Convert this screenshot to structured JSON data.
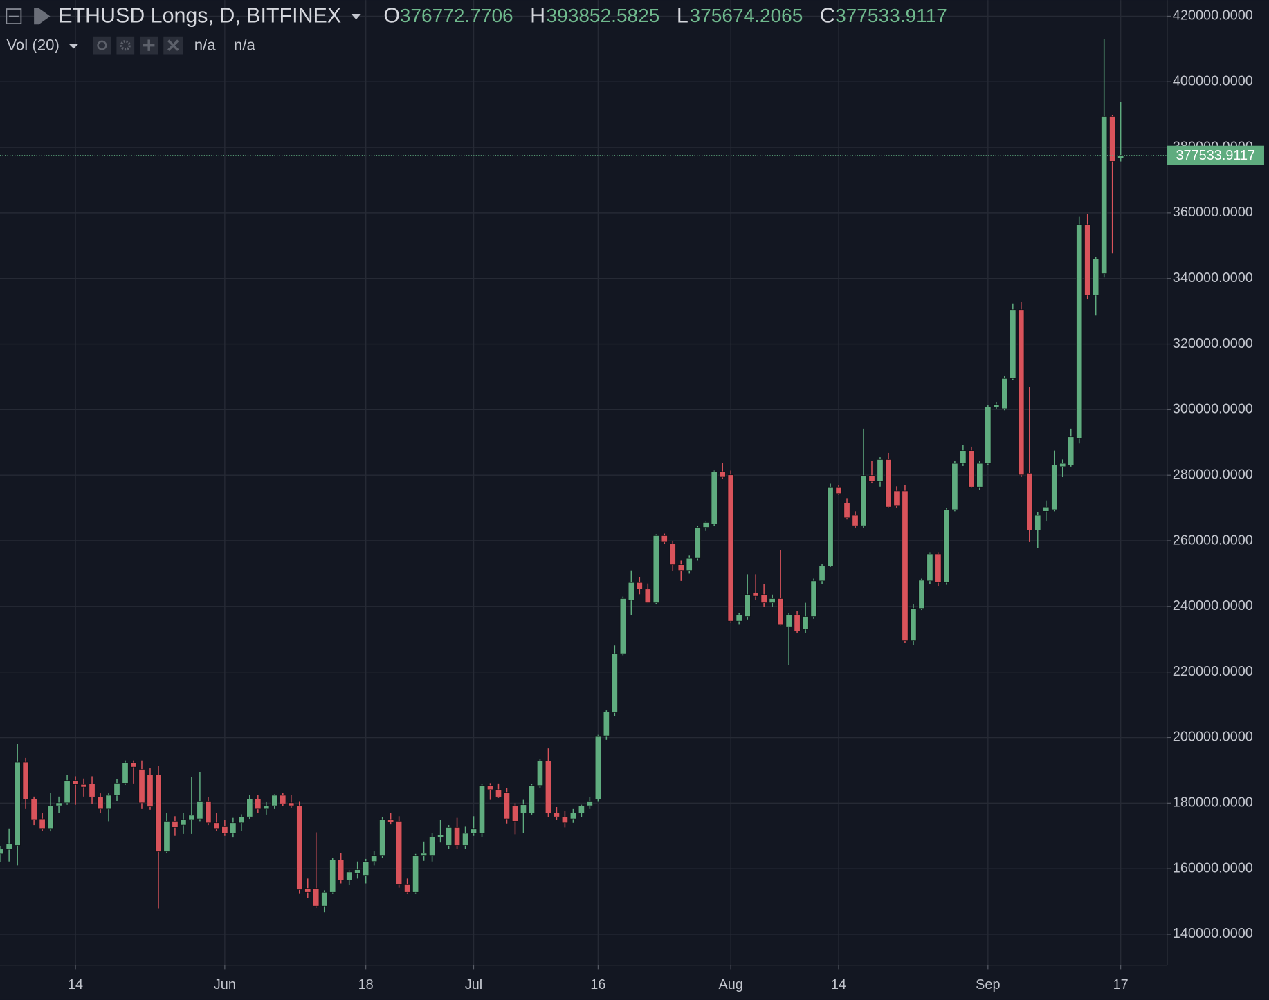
{
  "chart_data": {
    "type": "candlestick",
    "title": "ETHUSD Longs, D, BITFINEX",
    "ohlc_labels": [
      "O",
      "H",
      "L",
      "C"
    ],
    "indicator": "Vol (20)",
    "indicator_values": [
      "n/a",
      "n/a"
    ],
    "up_color": "#5fac7f",
    "down_color": "#d9535b",
    "grid": true,
    "ylim": [
      130600,
      424900
    ],
    "yticks": [
      {
        "value": 140000,
        "label": "140000.0000"
      },
      {
        "value": 160000,
        "label": "160000.0000"
      },
      {
        "value": 180000,
        "label": "180000.0000"
      },
      {
        "value": 200000,
        "label": "200000.0000"
      },
      {
        "value": 220000,
        "label": "220000.0000"
      },
      {
        "value": 240000,
        "label": "240000.0000"
      },
      {
        "value": 260000,
        "label": "260000.0000"
      },
      {
        "value": 280000,
        "label": "280000.0000"
      },
      {
        "value": 300000,
        "label": "300000.0000"
      },
      {
        "value": 320000,
        "label": "320000.0000"
      },
      {
        "value": 340000,
        "label": "340000.0000"
      },
      {
        "value": 360000,
        "label": "360000.0000"
      },
      {
        "value": 380000,
        "label": "380000.0000"
      },
      {
        "value": 400000,
        "label": "400000.0000"
      },
      {
        "value": 420000,
        "label": "420000.0000"
      }
    ],
    "categories": [
      null,
      null,
      null,
      null,
      null,
      null,
      null,
      null,
      null,
      "14",
      null,
      null,
      null,
      null,
      null,
      null,
      null,
      null,
      null,
      null,
      null,
      null,
      null,
      null,
      null,
      null,
      null,
      "Jun",
      null,
      null,
      null,
      null,
      null,
      null,
      null,
      null,
      null,
      null,
      null,
      null,
      null,
      null,
      null,
      null,
      "18",
      null,
      null,
      null,
      null,
      null,
      null,
      null,
      null,
      null,
      null,
      null,
      null,
      "Jul",
      null,
      null,
      null,
      null,
      null,
      null,
      null,
      null,
      null,
      null,
      null,
      null,
      null,
      null,
      "16",
      null,
      null,
      null,
      null,
      null,
      null,
      null,
      null,
      null,
      null,
      null,
      null,
      null,
      null,
      null,
      "Aug",
      null,
      null,
      null,
      null,
      null,
      null,
      null,
      null,
      null,
      null,
      null,
      null,
      "14",
      null,
      null,
      null,
      null,
      null,
      null,
      null,
      null,
      null,
      null,
      null,
      null,
      null,
      null,
      null,
      null,
      null,
      "Sep",
      null,
      null,
      null,
      null,
      null,
      null,
      null,
      null,
      null,
      null,
      null,
      null,
      null,
      null,
      null,
      "17"
    ],
    "open": [
      164500,
      165900,
      167100,
      192500,
      181200,
      175200,
      172100,
      179200,
      180100,
      186900,
      185700,
      185900,
      181900,
      178200,
      182400,
      186100,
      192300,
      190300,
      188600,
      188600,
      165200,
      174500,
      173300,
      175000,
      175200,
      180600,
      174000,
      172800,
      170800,
      174000,
      175800,
      181200,
      178200,
      179200,
      182400,
      180100,
      179200,
      154000,
      154000,
      148600,
      152800,
      162700,
      156500,
      158500,
      158000,
      162200,
      163900,
      175000,
      174500,
      155300,
      152800,
      163900,
      163900,
      169600,
      167100,
      172600,
      167100,
      170800,
      170800,
      185400,
      184100,
      183300,
      179200,
      177000,
      177000,
      185400,
      192800,
      177000,
      175800,
      175200,
      177000,
      179200,
      181200,
      200500,
      207600,
      225600,
      241900,
      247300,
      245300,
      241100,
      261600,
      259100,
      252700,
      251000,
      254700,
      264100,
      265100,
      281100,
      280100,
      235500,
      236900,
      244100,
      243600,
      241100,
      242400,
      233800,
      237400,
      233000,
      236900,
      247800,
      252300,
      276400,
      271500,
      267800,
      264600,
      279900,
      278100,
      284800,
      275200,
      275200,
      229500,
      239400,
      247800,
      256000,
      247300,
      269500,
      283600,
      287500,
      276400,
      283600,
      300800,
      300300,
      309500,
      330500,
      280600,
      263300,
      269000,
      269500,
      282600,
      283100,
      291200,
      356400,
      334900,
      341500,
      389400,
      376772.7706
    ],
    "high": [
      167000,
      172100,
      198000,
      193800,
      182000,
      177000,
      183200,
      182000,
      188600,
      188200,
      187500,
      188200,
      183000,
      183000,
      187400,
      193000,
      193000,
      193000,
      190600,
      191300,
      177000,
      176000,
      177000,
      188000,
      189400,
      181900,
      177000,
      175000,
      175500,
      176600,
      182400,
      182400,
      180500,
      182700,
      183200,
      182400,
      180600,
      157000,
      171100,
      153400,
      163400,
      164700,
      159500,
      162200,
      163000,
      165500,
      175700,
      177000,
      176000,
      157000,
      164500,
      168300,
      170800,
      175000,
      173300,
      175500,
      172800,
      176000,
      185900,
      186100,
      186000,
      184500,
      180000,
      181000,
      185900,
      193500,
      196700,
      178800,
      177700,
      178200,
      179500,
      181900,
      200800,
      208300,
      228100,
      243000,
      251000,
      249000,
      247000,
      262000,
      262200,
      260000,
      254000,
      255500,
      264500,
      265800,
      281400,
      283800,
      281400,
      238000,
      249800,
      249800,
      246800,
      243600,
      257200,
      238000,
      238500,
      241100,
      248500,
      253000,
      277400,
      276900,
      273000,
      269000,
      294200,
      284300,
      285500,
      286800,
      276600,
      276900,
      240800,
      248500,
      256500,
      256500,
      269900,
      284300,
      289200,
      288700,
      284300,
      301500,
      302300,
      310200,
      332400,
      332900,
      307000,
      268700,
      272300,
      287500,
      284800,
      294200,
      358800,
      359600,
      346500,
      413100,
      389800,
      393852.5825
    ],
    "low": [
      162000,
      162200,
      161000,
      178200,
      173300,
      171500,
      171400,
      177000,
      179500,
      179500,
      182000,
      179800,
      176900,
      174500,
      180700,
      185600,
      186000,
      178200,
      178000,
      147900,
      164700,
      170000,
      170600,
      170600,
      174500,
      173300,
      171500,
      170000,
      169500,
      171500,
      175200,
      177000,
      176500,
      178200,
      179200,
      178600,
      152300,
      151000,
      148100,
      146700,
      152300,
      155500,
      155000,
      157000,
      155500,
      161000,
      163400,
      173500,
      154200,
      152300,
      152300,
      162400,
      162200,
      168000,
      166000,
      166000,
      166000,
      170000,
      169600,
      181000,
      181600,
      173800,
      170500,
      170800,
      176500,
      184500,
      175700,
      175000,
      172600,
      174000,
      175800,
      178200,
      180600,
      199300,
      206600,
      225100,
      237400,
      243700,
      241000,
      240800,
      259000,
      250900,
      247800,
      250000,
      254000,
      263000,
      264500,
      279000,
      235000,
      234400,
      236000,
      241900,
      239900,
      239900,
      234200,
      222200,
      231800,
      231800,
      236200,
      246800,
      252000,
      274000,
      266500,
      264000,
      264000,
      277500,
      276500,
      270000,
      270000,
      228800,
      228300,
      238900,
      246800,
      246100,
      246600,
      269000,
      282800,
      276200,
      275400,
      283100,
      300300,
      299800,
      309000,
      279400,
      259600,
      257700,
      265900,
      269000,
      279400,
      282600,
      289700,
      333600,
      328700,
      340300,
      347700,
      375674.2065
    ],
    "close": [
      166000,
      167600,
      192500,
      181200,
      175000,
      172100,
      179200,
      180100,
      186900,
      185700,
      184900,
      181900,
      178200,
      182400,
      186100,
      192300,
      191000,
      180100,
      178900,
      165200,
      174500,
      172600,
      175000,
      176300,
      180600,
      174000,
      172100,
      170800,
      174000,
      175800,
      181200,
      178200,
      179200,
      182400,
      179800,
      179200,
      153600,
      152800,
      148600,
      152800,
      162700,
      156500,
      159000,
      159700,
      162200,
      163900,
      175000,
      174300,
      155300,
      152800,
      163900,
      164700,
      169600,
      170300,
      172600,
      167100,
      170800,
      172100,
      185400,
      184100,
      181900,
      175200,
      174500,
      179500,
      185400,
      192800,
      177000,
      175800,
      174000,
      177000,
      179200,
      180600,
      200500,
      207800,
      225600,
      242400,
      247300,
      245300,
      241100,
      261600,
      259600,
      252700,
      251000,
      254700,
      264100,
      265600,
      281100,
      279400,
      235500,
      237400,
      243600,
      243100,
      241100,
      242400,
      234300,
      237400,
      232500,
      236900,
      247800,
      252300,
      276400,
      274400,
      267000,
      264600,
      279900,
      278100,
      284800,
      270300,
      270800,
      229500,
      239400,
      248000,
      256000,
      247300,
      269500,
      283600,
      287500,
      276400,
      283600,
      300800,
      301600,
      309500,
      330500,
      280100,
      263300,
      267800,
      270300,
      283100,
      283600,
      291700,
      356400,
      334900,
      346000,
      389400,
      375700,
      377533.9117
    ]
  }
}
